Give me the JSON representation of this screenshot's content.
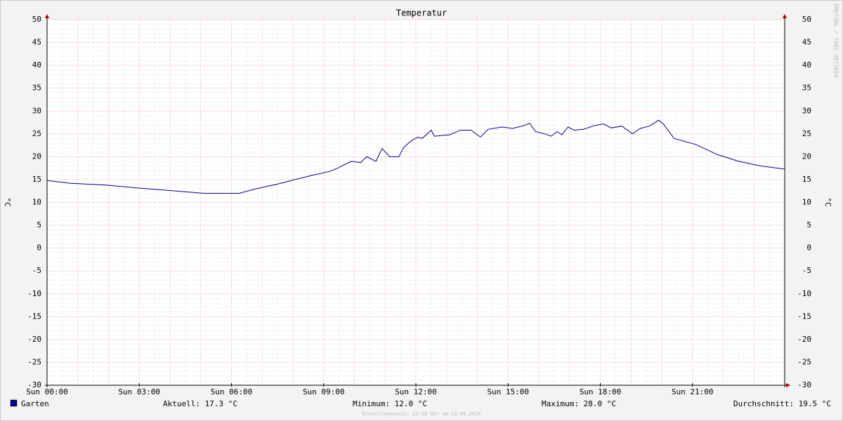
{
  "chart_data": {
    "type": "line",
    "title": "Temperatur",
    "y_label": "°C",
    "y2_label": "°C",
    "side_note": "RRDTOOL / TOBI OETIKER",
    "footer": "Erstellungszeit: 23:58 Uhr am 23.06.2024",
    "x": [
      0,
      0.75,
      1.9,
      3.05,
      4.2,
      5.1,
      6.25,
      6.8,
      7.5,
      8.07,
      8.6,
      9.2,
      9.45,
      9.9,
      10.2,
      10.4,
      10.7,
      10.9,
      11.15,
      11.45,
      11.6,
      11.85,
      12.07,
      12.2,
      12.5,
      12.6,
      13.1,
      13.45,
      13.8,
      14.1,
      14.35,
      14.8,
      15.15,
      15.5,
      15.7,
      15.9,
      16.2,
      16.4,
      16.6,
      16.75,
      16.95,
      17.15,
      17.45,
      17.8,
      18.1,
      18.35,
      18.7,
      19.05,
      19.3,
      19.6,
      19.9,
      20.05,
      20.4,
      21.1,
      21.8,
      22.5,
      23.2,
      24
    ],
    "series": [
      {
        "name": "Garten",
        "color": "#00008b",
        "values": [
          14.8,
          14.2,
          13.8,
          13.1,
          12.5,
          12.0,
          12.0,
          13.0,
          14.0,
          15.0,
          15.9,
          16.8,
          17.5,
          19.0,
          18.7,
          20.0,
          19.0,
          21.8,
          20.0,
          20.0,
          22.0,
          23.5,
          24.3,
          24.0,
          25.8,
          24.5,
          24.8,
          25.8,
          25.8,
          24.3,
          26.0,
          26.5,
          26.2,
          26.8,
          27.3,
          25.5,
          25.0,
          24.5,
          25.5,
          24.8,
          26.5,
          25.8,
          26.0,
          26.8,
          27.2,
          26.3,
          26.7,
          25.0,
          26.2,
          26.7,
          28.0,
          27.2,
          24.0,
          22.7,
          20.5,
          19.0,
          18.0,
          17.3
        ]
      }
    ],
    "xlim": [
      0,
      24
    ],
    "xticks": [
      {
        "value": 0,
        "label": "Sun 00:00"
      },
      {
        "value": 3,
        "label": "Sun 03:00"
      },
      {
        "value": 6,
        "label": "Sun 06:00"
      },
      {
        "value": 9,
        "label": "Sun 09:00"
      },
      {
        "value": 12,
        "label": "Sun 12:00"
      },
      {
        "value": 15,
        "label": "Sun 15:00"
      },
      {
        "value": 18,
        "label": "Sun 18:00"
      },
      {
        "value": 21,
        "label": "Sun 21:00"
      }
    ],
    "ylim": [
      -30,
      50
    ],
    "yticks": [
      -30,
      -25,
      -20,
      -15,
      -10,
      -5,
      0,
      5,
      10,
      15,
      20,
      25,
      30,
      35,
      40,
      45,
      50
    ],
    "grid": true,
    "stats": [
      "Aktuell: 17.3 °C",
      "Minimum: 12.0 °C",
      "Maximum: 28.0 °C",
      "Durchschnitt: 19.5 °C"
    ]
  }
}
